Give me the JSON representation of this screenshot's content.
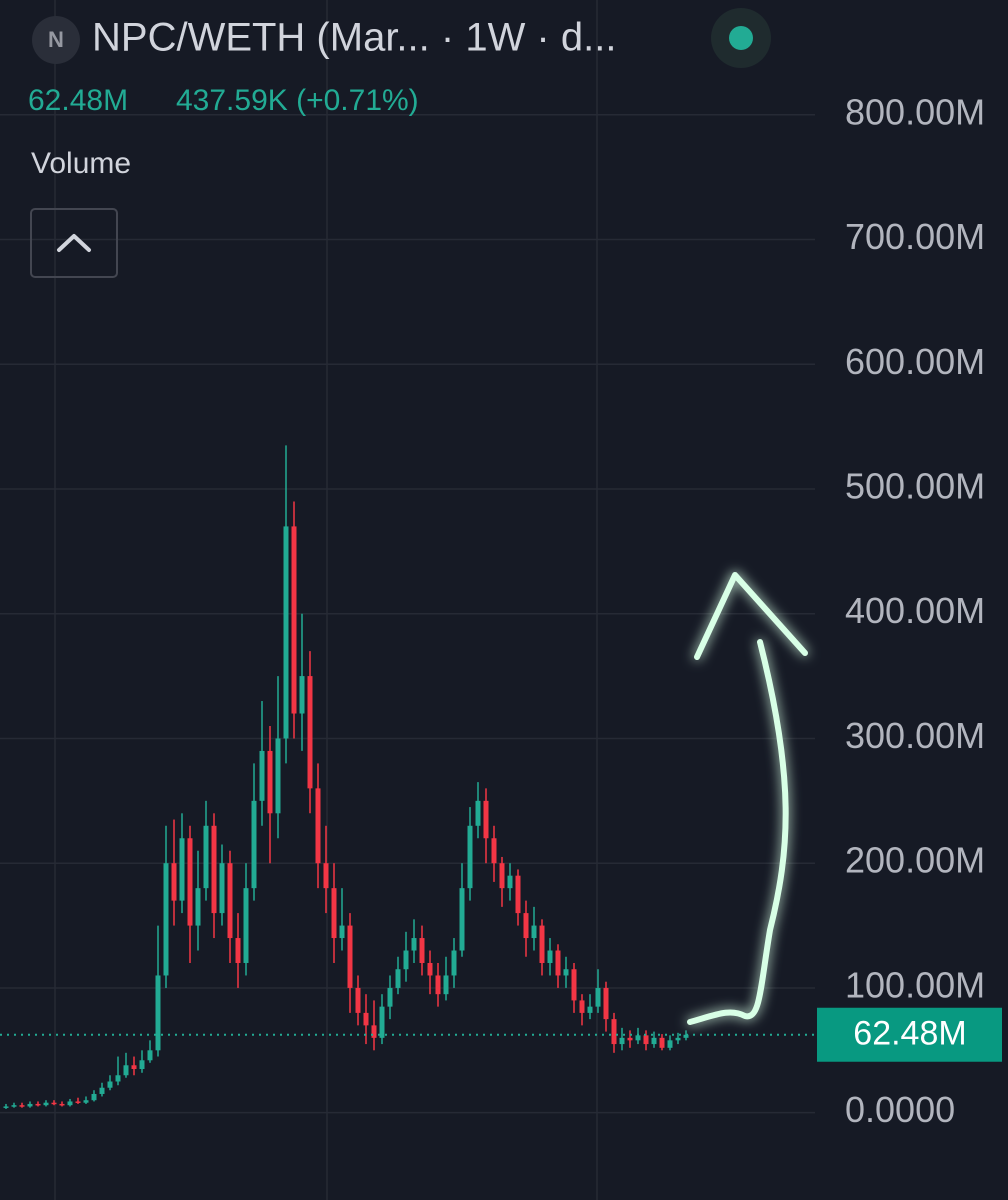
{
  "header": {
    "icon": "N",
    "title": "NPC/WETH (Mar... · 1W · d...",
    "change": "437.59K (+0.71%)",
    "indicator": "Volume"
  },
  "chart_data": {
    "type": "candlestick",
    "open": [
      4,
      5,
      6,
      5,
      7,
      6,
      8,
      7,
      6,
      9,
      8,
      10,
      15,
      20,
      25,
      30,
      38,
      35,
      42,
      50,
      110,
      200,
      170,
      220,
      150,
      180,
      230,
      160,
      200,
      140,
      120,
      180,
      250,
      290,
      240,
      300,
      470,
      320,
      350,
      260,
      200,
      180,
      140,
      150,
      100,
      80,
      70,
      60,
      85,
      100,
      115,
      130,
      140,
      120,
      110,
      95,
      110,
      130,
      180,
      230,
      250,
      220,
      200,
      180,
      190,
      160,
      140,
      150,
      120,
      130,
      110,
      115,
      90,
      80,
      85,
      100,
      75,
      55,
      60,
      58,
      62,
      55,
      60,
      52,
      58,
      60
    ],
    "high": [
      7,
      8,
      8,
      9,
      9,
      10,
      10,
      9,
      11,
      12,
      13,
      18,
      24,
      30,
      45,
      48,
      45,
      50,
      58,
      150,
      230,
      235,
      240,
      230,
      210,
      250,
      240,
      215,
      210,
      160,
      200,
      280,
      330,
      310,
      350,
      535,
      490,
      400,
      370,
      280,
      230,
      200,
      180,
      160,
      110,
      95,
      90,
      95,
      110,
      125,
      145,
      155,
      150,
      130,
      120,
      125,
      140,
      200,
      245,
      265,
      260,
      230,
      205,
      200,
      195,
      170,
      165,
      155,
      140,
      135,
      125,
      120,
      95,
      95,
      115,
      105,
      80,
      68,
      66,
      68,
      66,
      65,
      63,
      62,
      64,
      66
    ],
    "low": [
      3,
      4,
      4,
      4,
      5,
      5,
      6,
      5,
      5,
      7,
      7,
      9,
      13,
      18,
      22,
      28,
      30,
      32,
      40,
      45,
      100,
      150,
      160,
      120,
      130,
      170,
      140,
      150,
      120,
      100,
      110,
      170,
      230,
      200,
      220,
      280,
      300,
      290,
      240,
      180,
      160,
      120,
      130,
      80,
      70,
      55,
      50,
      55,
      75,
      95,
      105,
      120,
      110,
      95,
      85,
      90,
      100,
      125,
      170,
      220,
      200,
      185,
      165,
      170,
      150,
      125,
      130,
      110,
      110,
      100,
      100,
      80,
      70,
      75,
      80,
      65,
      48,
      50,
      52,
      55,
      50,
      52,
      50,
      50,
      55,
      58
    ],
    "close": [
      5,
      6,
      5,
      7,
      6,
      8,
      7,
      6,
      9,
      8,
      10,
      15,
      20,
      25,
      30,
      38,
      35,
      42,
      50,
      110,
      200,
      170,
      220,
      150,
      180,
      230,
      160,
      200,
      140,
      120,
      180,
      250,
      290,
      240,
      300,
      470,
      320,
      350,
      260,
      200,
      180,
      140,
      150,
      100,
      80,
      70,
      60,
      85,
      100,
      115,
      130,
      140,
      120,
      110,
      95,
      110,
      130,
      180,
      230,
      250,
      220,
      200,
      180,
      190,
      160,
      140,
      150,
      120,
      130,
      110,
      115,
      90,
      80,
      85,
      100,
      75,
      55,
      60,
      58,
      62,
      55,
      60,
      52,
      58,
      60,
      62.48
    ],
    "up_color": "#22ab94",
    "down_color": "#f23645",
    "last_value": 62.48,
    "last_value_label": "62.48M",
    "ylim": [
      -70,
      892
    ],
    "yticks": [
      {
        "value": 0,
        "label": "0.0000"
      },
      {
        "value": 100,
        "label": "100.00M"
      },
      {
        "value": 200,
        "label": "200.00M"
      },
      {
        "value": 300,
        "label": "300.00M"
      },
      {
        "value": 400,
        "label": "400.00M"
      },
      {
        "value": 500,
        "label": "500.00M"
      },
      {
        "value": 600,
        "label": "600.00M"
      },
      {
        "value": 700,
        "label": "700.00M"
      },
      {
        "value": 800,
        "label": "800.00M"
      }
    ],
    "grid": true
  }
}
